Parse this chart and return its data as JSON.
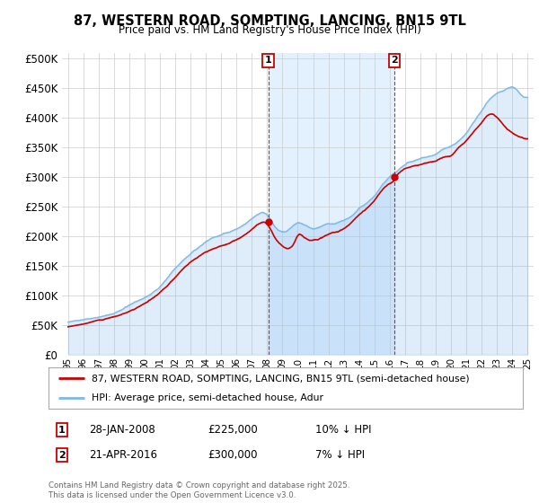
{
  "title": "87, WESTERN ROAD, SOMPTING, LANCING, BN15 9TL",
  "subtitle": "Price paid vs. HM Land Registry's House Price Index (HPI)",
  "ytick_vals": [
    0,
    50000,
    100000,
    150000,
    200000,
    250000,
    300000,
    350000,
    400000,
    450000,
    500000
  ],
  "ylim": [
    0,
    510000
  ],
  "xlim_start": 1994.6,
  "xlim_end": 2025.4,
  "hpi_color": "#7cb8e8",
  "hpi_fill_color": "#ddeeff",
  "price_color": "#cc0000",
  "marker1_x": 2008.07,
  "marker1_y": 225000,
  "marker2_x": 2016.31,
  "marker2_y": 300000,
  "legend_line1": "87, WESTERN ROAD, SOMPTING, LANCING, BN15 9TL (semi-detached house)",
  "legend_line2": "HPI: Average price, semi-detached house, Adur",
  "footnote": "Contains HM Land Registry data © Crown copyright and database right 2025.\nThis data is licensed under the Open Government Licence v3.0.",
  "plot_bg": "#ffffff"
}
